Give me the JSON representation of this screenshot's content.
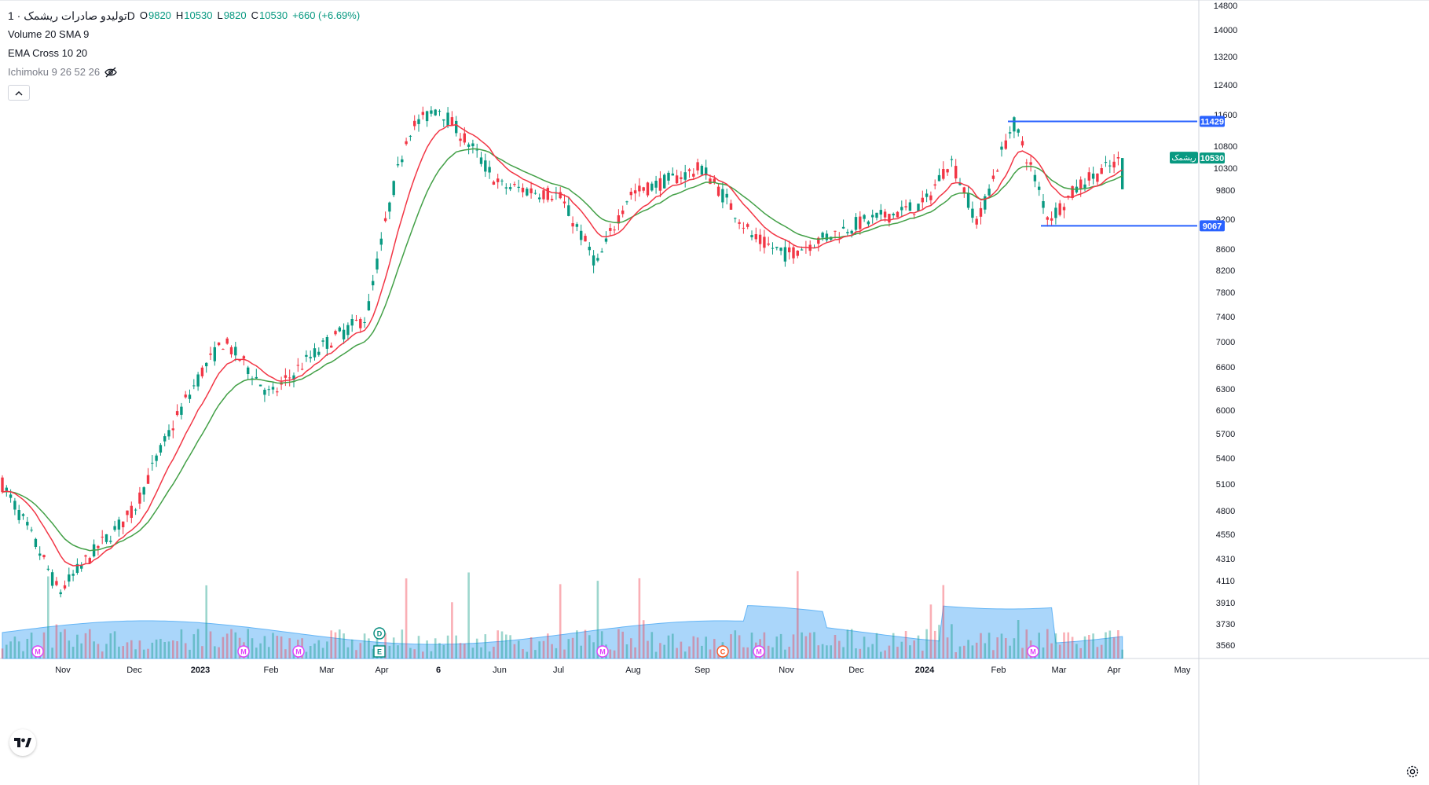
{
  "legend": {
    "symbol": "تولیدو صادرات ریشمک · 1D",
    "ohlc": [
      {
        "k": "O",
        "v": "9820"
      },
      {
        "k": "H",
        "v": "10530"
      },
      {
        "k": "L",
        "v": "9820"
      },
      {
        "k": "C",
        "v": "10530"
      }
    ],
    "change": "+660 (+6.69%)",
    "volume": "Volume 20 SMA 9",
    "ema": "EMA Cross 10 20",
    "ichimoku": "Ichimoku 9 26 52 26"
  },
  "price_labels": {
    "level_high": "11429",
    "level_low": "9067",
    "last": "10530",
    "symbol_tag": "ریشمک"
  },
  "colors": {
    "up": "#089981",
    "down": "#f23645",
    "ema_fast": "#f23645",
    "ema_slow": "#43a047",
    "level_line": "#2962ff",
    "volume_area": "#64b5f6",
    "event_marker": "#e040fb"
  },
  "chart_data": {
    "type": "candlestick",
    "price_axis_ticks": [
      3560,
      3730,
      3910,
      4110,
      4310,
      4550,
      4800,
      5100,
      5400,
      5700,
      6000,
      6300,
      6600,
      7000,
      7400,
      7800,
      8200,
      8600,
      9200,
      9800,
      10300,
      10800,
      11600,
      12400,
      13200,
      14000,
      14800
    ],
    "time_axis_labels": [
      "Nov",
      "Dec",
      "2023",
      "Feb",
      "Mar",
      "Apr",
      "6",
      "Jun",
      "Jul",
      "Aug",
      "Sep",
      "Nov",
      "Dec",
      "2024",
      "Feb",
      "Mar",
      "Apr",
      "May"
    ],
    "horizontal_levels": [
      11429,
      9067
    ],
    "last_price": 10530,
    "price_anchors": [
      {
        "t": "Oct",
        "p": 5100
      },
      {
        "t": "Nov",
        "p": 4000
      },
      {
        "t": "Dec",
        "p": 4800
      },
      {
        "t": "2023",
        "p": 6500
      },
      {
        "t": "2023 mid",
        "p": 7000
      },
      {
        "t": "Feb",
        "p": 6200
      },
      {
        "t": "Mar",
        "p": 7000
      },
      {
        "t": "Apr",
        "p": 7400
      },
      {
        "t": "Apr end",
        "p": 11200
      },
      {
        "t": "6",
        "p": 11800
      },
      {
        "t": "Jun",
        "p": 9900
      },
      {
        "t": "Jul",
        "p": 9700
      },
      {
        "t": "Jul end",
        "p": 8300
      },
      {
        "t": "Aug",
        "p": 9700
      },
      {
        "t": "Sep",
        "p": 10300
      },
      {
        "t": "Oct",
        "p": 8800
      },
      {
        "t": "Nov",
        "p": 8500
      },
      {
        "t": "Dec",
        "p": 9100
      },
      {
        "t": "2024",
        "p": 9500
      },
      {
        "t": "Jan",
        "p": 10500
      },
      {
        "t": "Jan end",
        "p": 9100
      },
      {
        "t": "Feb",
        "p": 11400
      },
      {
        "t": "Mar",
        "p": 9200
      },
      {
        "t": "Mar end",
        "p": 10000
      },
      {
        "t": "Apr",
        "p": 10530
      }
    ],
    "events": [
      {
        "label": "M"
      },
      {
        "label": "M"
      },
      {
        "label": "M"
      },
      {
        "label": "D"
      },
      {
        "label": "E"
      },
      {
        "label": "M"
      },
      {
        "label": "C"
      },
      {
        "label": "M"
      },
      {
        "label": "M"
      }
    ]
  }
}
